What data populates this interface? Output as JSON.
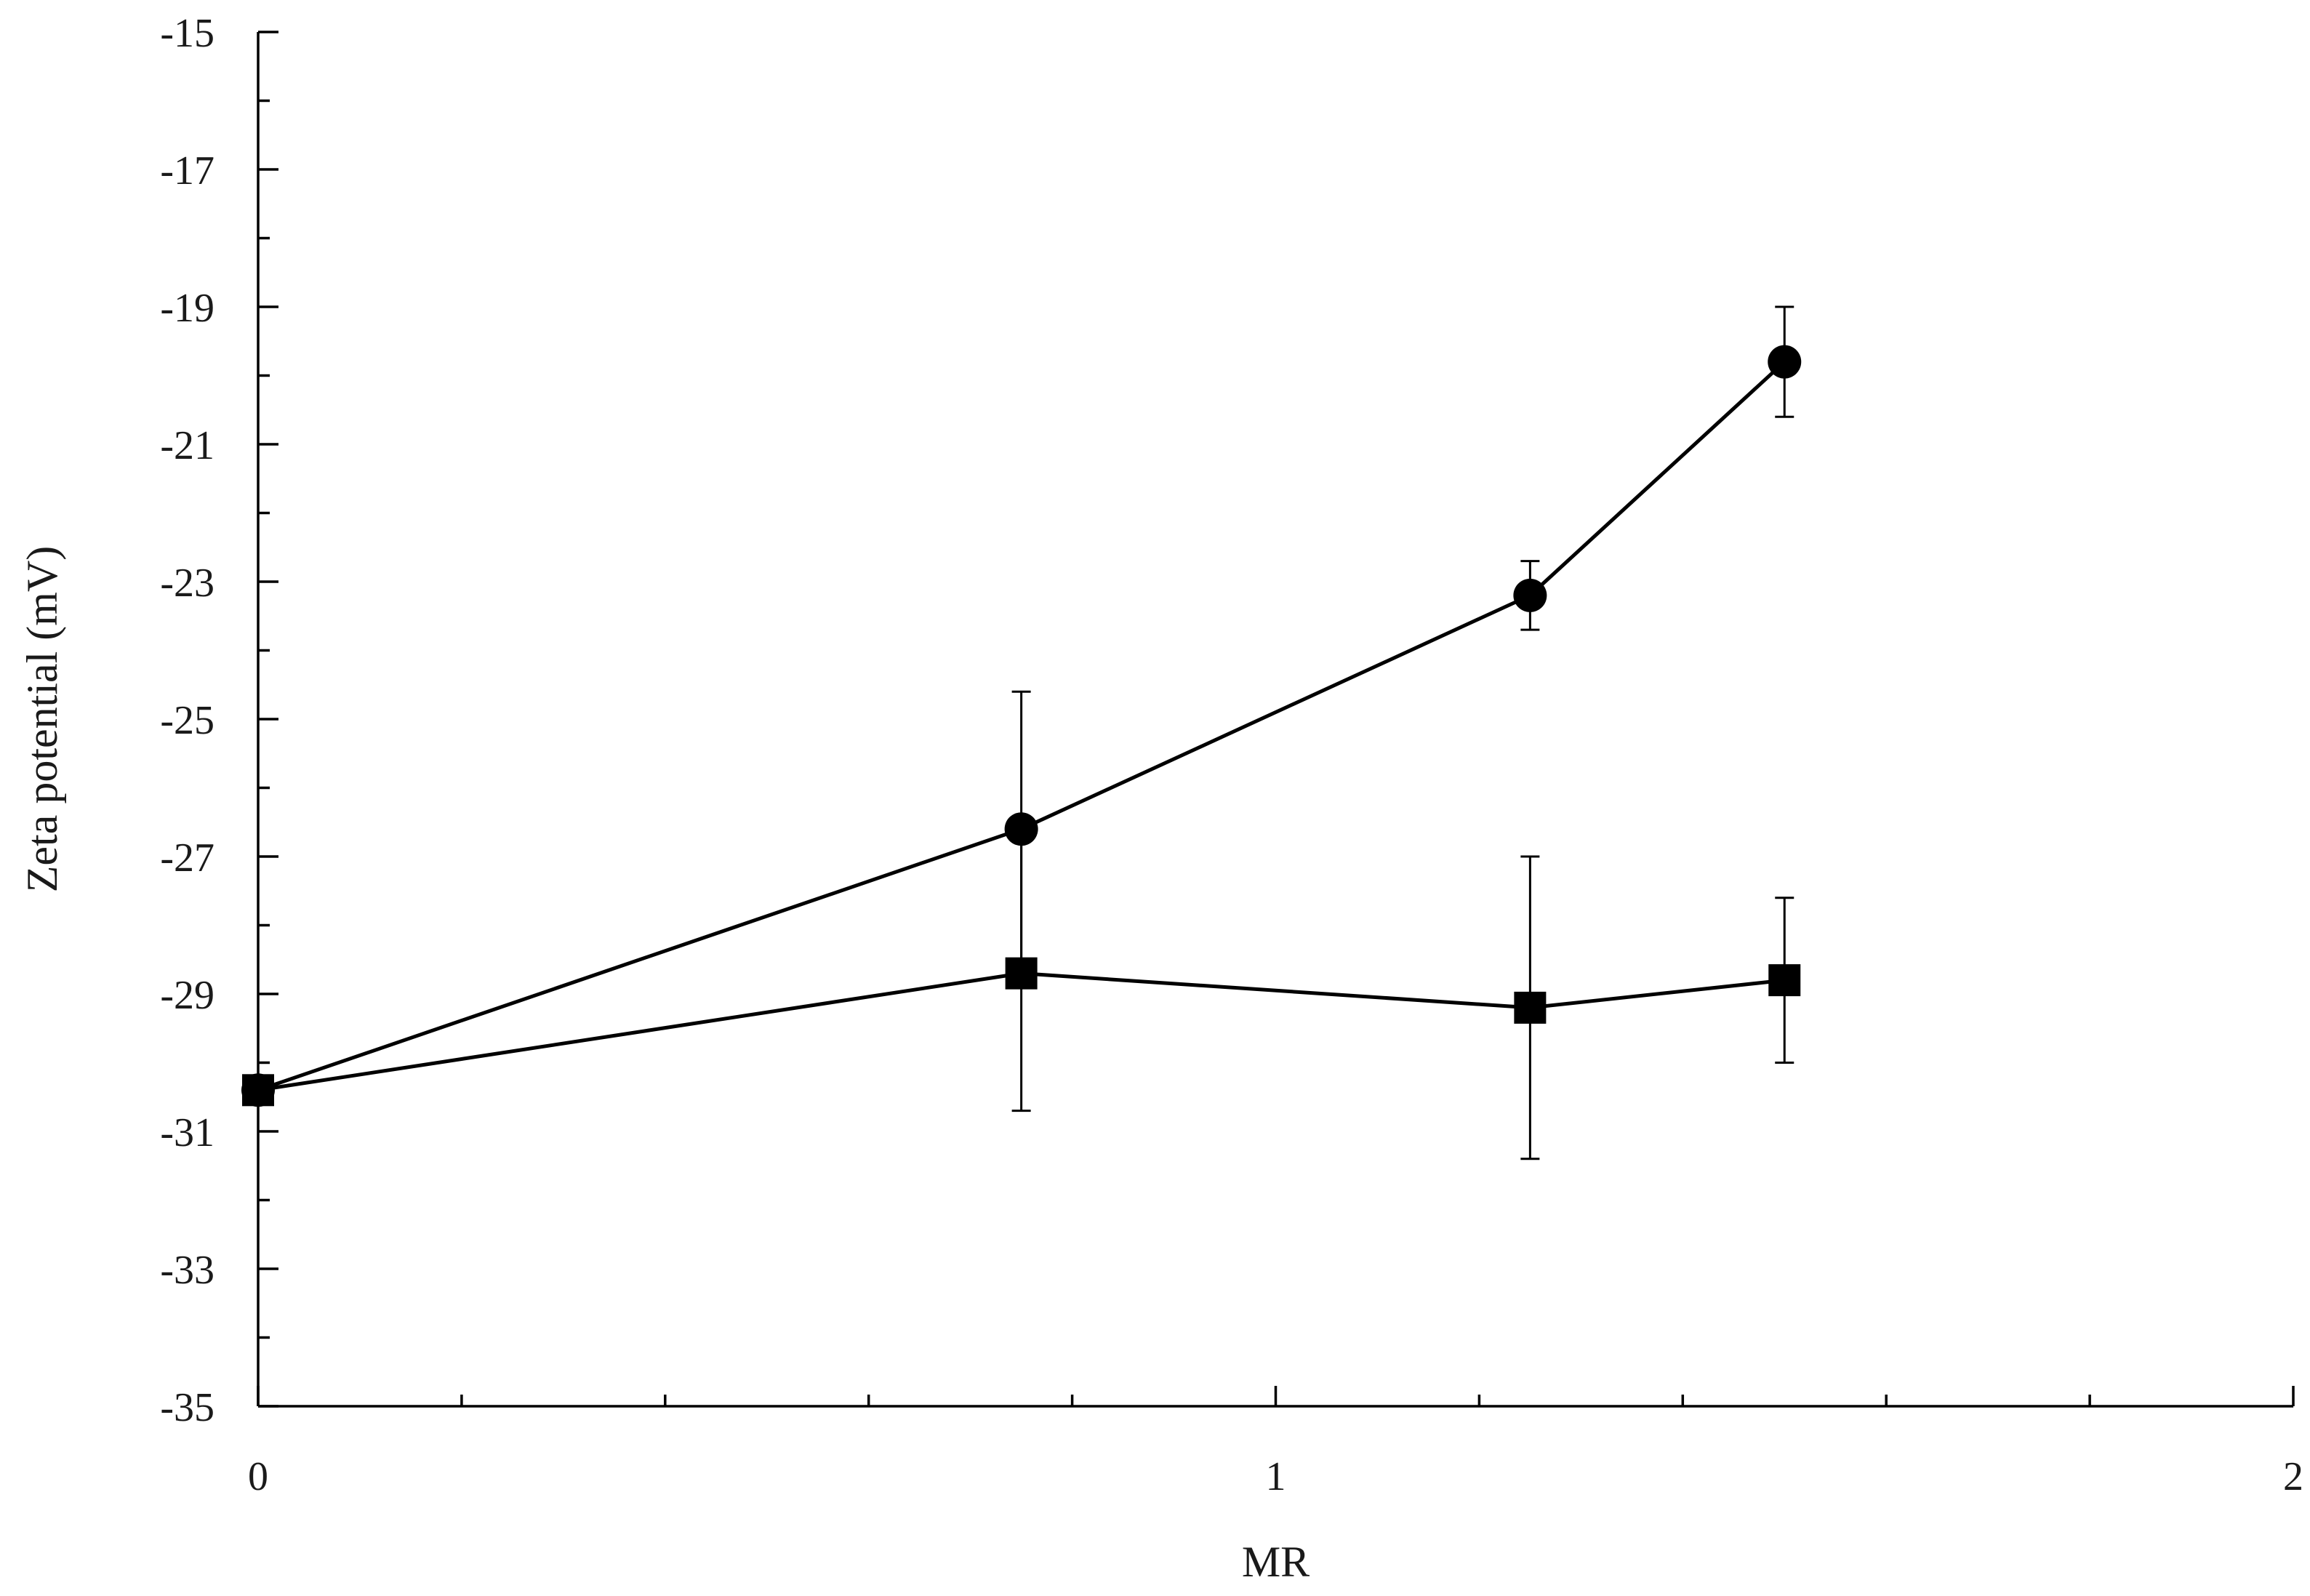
{
  "chart_data": {
    "type": "line",
    "title": "",
    "xlabel": "MR",
    "ylabel": "Zeta potential (mV)",
    "xlim": [
      0,
      2
    ],
    "ylim": [
      -35,
      -15
    ],
    "x_ticks": [
      0,
      1,
      2
    ],
    "x_tick_labels": [
      "0",
      "1",
      "2"
    ],
    "x_minor_step": 0.2,
    "y_ticks": [
      -35,
      -33,
      -31,
      -29,
      -27,
      -25,
      -23,
      -21,
      -19,
      -17,
      -15
    ],
    "y_tick_labels": [
      "-35",
      "-33",
      "-31",
      "-29",
      "-27",
      "-25",
      "-23",
      "-21",
      "-19",
      "-17",
      "-15"
    ],
    "y_minor_step": 1,
    "grid": false,
    "legend": "none",
    "line_color": "#000000",
    "series": [
      {
        "marker": "circle",
        "points": [
          {
            "x": 0,
            "y": -30.4,
            "err_low": 0,
            "err_high": 0
          },
          {
            "x": 0.75,
            "y": -26.6,
            "err_low": 2.0,
            "err_high": 2.0
          },
          {
            "x": 1.25,
            "y": -23.2,
            "err_low": 0.5,
            "err_high": 0.5
          },
          {
            "x": 1.5,
            "y": -19.8,
            "err_low": 0.8,
            "err_high": 0.8
          }
        ]
      },
      {
        "marker": "square",
        "points": [
          {
            "x": 0,
            "y": -30.4,
            "err_low": 0,
            "err_high": 0
          },
          {
            "x": 0.75,
            "y": -28.7,
            "err_low": 2.0,
            "err_high": 2.0
          },
          {
            "x": 1.25,
            "y": -29.2,
            "err_low": 2.2,
            "err_high": 2.2
          },
          {
            "x": 1.5,
            "y": -28.8,
            "err_low": 1.2,
            "err_high": 1.2
          }
        ]
      }
    ]
  }
}
